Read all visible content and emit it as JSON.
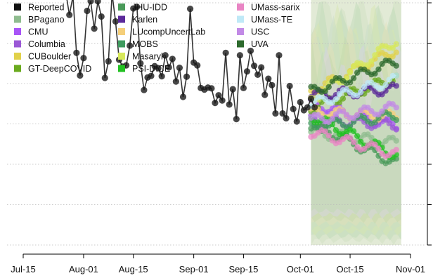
{
  "chart_data": {
    "type": "line",
    "title": "",
    "xlabel": "",
    "ylabel": "",
    "x_ticks": [
      "Jul-15",
      "Aug-01",
      "Aug-15",
      "Sep-01",
      "Sep-15",
      "Oct-01",
      "Oct-15",
      "Nov-01"
    ],
    "x_range": [
      "2020-07-15",
      "2020-11-01"
    ],
    "y_ticks_count": 6,
    "grid": "horizontal dotted",
    "legend_placement": "top-left",
    "forecast_window": [
      "2020-10-04",
      "2020-10-28"
    ],
    "legend": [
      {
        "name": "Reported",
        "color": "#111111"
      },
      {
        "name": "BPagano",
        "color": "#8fbc8f"
      },
      {
        "name": "CMU",
        "color": "#a855f7"
      },
      {
        "name": "Columbia",
        "color": "#9b59d6"
      },
      {
        "name": "CUBoulder",
        "color": "#e1d14a"
      },
      {
        "name": "GT-DeepCOVID",
        "color": "#6aaa1e"
      },
      {
        "name": "JHU-IDD",
        "color": "#4a9a5a"
      },
      {
        "name": "Karlen",
        "color": "#5b2a9a"
      },
      {
        "name": "LUcompUncertLab",
        "color": "#f5cf7a"
      },
      {
        "name": "MOBS",
        "color": "#3e9a5e"
      },
      {
        "name": "Masaryk",
        "color": "#d7e85a"
      },
      {
        "name": "PSI-DICE",
        "color": "#22c022"
      },
      {
        "name": "UMass-sarix",
        "color": "#e985c4"
      },
      {
        "name": "UMass-TE",
        "color": "#bfe9f7"
      },
      {
        "name": "USC",
        "color": "#c28ae6"
      },
      {
        "name": "UVA",
        "color": "#2d6a2d"
      }
    ],
    "reported_series": {
      "name": "Reported",
      "start_date": "2020-07-27",
      "values": [
        62.5,
        57.0,
        61.6,
        47.6,
        42.0,
        46.3,
        58.0,
        60.4,
        53.6,
        60.4,
        56.6,
        41.4,
        45.5,
        62.3,
        55.4,
        45.9,
        44.2,
        44.5,
        49.4,
        58.6,
        59.0,
        45.0,
        38.4,
        41.5,
        41.9,
        44.3,
        43.8,
        41.8,
        47.0,
        44.0,
        46.1,
        40.5,
        43.9,
        36.7,
        41.7,
        58.5,
        45.2,
        44.5,
        38.9,
        38.5,
        39.0,
        38.8,
        35.2,
        37.1,
        35.8,
        47.6,
        34.8,
        38.6,
        31.2,
        47.0,
        38.9,
        43.0,
        48.1,
        44.4,
        42.2,
        44.0,
        37.2,
        41.2,
        39.6,
        32.6,
        47.0,
        32.6,
        31.4,
        39.4,
        33.7,
        30.6,
        35.4,
        33.4,
        34.1,
        36.2,
        34.1
      ]
    }
  }
}
